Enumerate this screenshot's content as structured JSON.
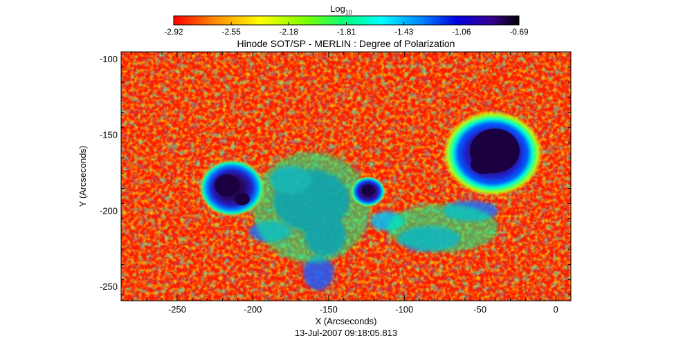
{
  "colorbar": {
    "title": "Log",
    "title_subscript": "10",
    "tick_labels": [
      "-2.92",
      "-2.55",
      "-2.18",
      "-1.81",
      "-1.43",
      "-1.06",
      "-0.69"
    ],
    "range": [
      -2.92,
      -0.69
    ],
    "colors": [
      "#ff0000",
      "#ff8c00",
      "#ffff00",
      "#7fff00",
      "#00ff7f",
      "#00ffff",
      "#0080ff",
      "#0000e0",
      "#3a0090",
      "#000000"
    ]
  },
  "chart_data": {
    "type": "heatmap",
    "title": "Hinode SOT/SP - MERLIN : Degree of Polarization",
    "xlabel": "X (Arcseconds)",
    "ylabel": "Y (Arcseconds)",
    "x_ticks": [
      -250,
      -200,
      -150,
      -100,
      -50,
      0
    ],
    "y_ticks": [
      -100,
      -150,
      -200,
      -250
    ],
    "xlim": [
      -287,
      10
    ],
    "ylim": [
      -259,
      -95
    ],
    "features": [
      {
        "kind": "spot",
        "x": -43,
        "y": -163,
        "value": -0.69
      },
      {
        "kind": "spot",
        "x": -217,
        "y": -186,
        "value": -0.8
      },
      {
        "kind": "spot",
        "x": -123,
        "y": -187,
        "value": -0.85
      }
    ]
  },
  "footer": {
    "timestamp": "13-Jul-2007 09:18:05.813"
  }
}
